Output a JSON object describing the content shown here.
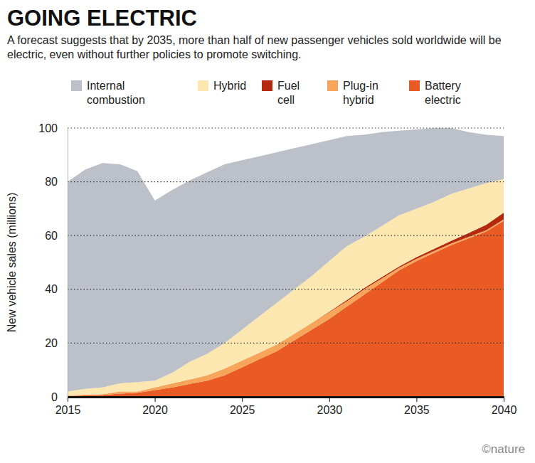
{
  "chart_data": {
    "type": "area",
    "stacked": true,
    "title": "GOING ELECTRIC",
    "subtitle": "A forecast suggests that by 2035, more than half of new passenger vehicles sold worldwide will be electric, even without further policies to promote switching.",
    "y_label": "New vehicle sales (millions)",
    "x": [
      2015,
      2016,
      2017,
      2018,
      2019,
      2020,
      2021,
      2022,
      2023,
      2024,
      2025,
      2026,
      2027,
      2028,
      2029,
      2030,
      2031,
      2032,
      2033,
      2034,
      2035,
      2036,
      2037,
      2038,
      2039,
      2040
    ],
    "xlim": [
      2015,
      2040
    ],
    "xticks": [
      2015,
      2020,
      2025,
      2030,
      2035,
      2040
    ],
    "ylim": [
      0,
      100
    ],
    "yticks": [
      0,
      20,
      40,
      60,
      80,
      100
    ],
    "grid": true,
    "legend": "top",
    "series": [
      {
        "name": "Internal combustion",
        "color": "#bcc1c9",
        "values": [
          78,
          81.5,
          83.5,
          81.5,
          78.5,
          67,
          68,
          67.5,
          67.5,
          66.5,
          63,
          59.5,
          56,
          52.5,
          49,
          45,
          41,
          38,
          35,
          31.5,
          29.5,
          27.5,
          24.5,
          21,
          18,
          16
        ]
      },
      {
        "name": "Hybrid",
        "color": "#fde7b0",
        "values": [
          1.5,
          2.2,
          2.5,
          3,
          3.5,
          2.5,
          4,
          6.5,
          8,
          9.5,
          11.5,
          13.5,
          15.5,
          16.5,
          17.5,
          18.8,
          20,
          19,
          19,
          19,
          18,
          17.5,
          17.4,
          16.5,
          15.5,
          12.5
        ]
      },
      {
        "name": "Fuel cell",
        "color": "#b5290f",
        "values": [
          0,
          0,
          0,
          0,
          0,
          0,
          0,
          0,
          0,
          0,
          0,
          0,
          0,
          0,
          0,
          0.2,
          0.5,
          0.5,
          0.5,
          0.5,
          0.7,
          0.8,
          1,
          1.5,
          2,
          2.5
        ]
      },
      {
        "name": "Plug-in hybrid",
        "color": "#f6a55a",
        "values": [
          0.2,
          0.3,
          0.3,
          0.8,
          0.5,
          1,
          1.5,
          1.7,
          2,
          2.5,
          2.5,
          2.5,
          2.5,
          2.5,
          2.5,
          2.5,
          2,
          2,
          1.5,
          1,
          0.8,
          0.7,
          0.6,
          0.5,
          0.5,
          0.5
        ]
      },
      {
        "name": "Battery electric",
        "color": "#e95a24",
        "values": [
          0.3,
          0.5,
          0.7,
          1.2,
          1.5,
          2.5,
          3.5,
          4.8,
          6,
          8,
          11,
          14,
          17,
          21,
          25,
          29,
          33.5,
          38,
          42.5,
          47,
          50.5,
          53.5,
          56.5,
          59,
          61.5,
          65.5
        ]
      }
    ],
    "annotations": [
      "©nature"
    ]
  }
}
